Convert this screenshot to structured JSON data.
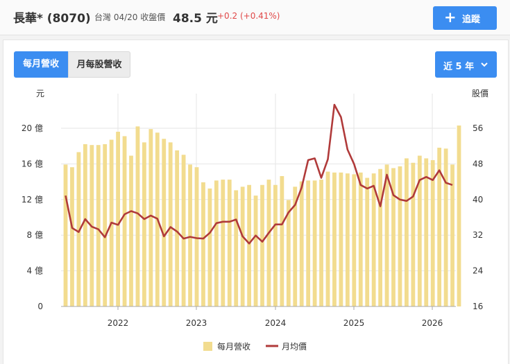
{
  "header": {
    "stock_name": "長華* (8070)",
    "quote_meta": "台灣 04/20 收盤價",
    "price": "48.5 元",
    "change": "+0.2 (+0.41%)",
    "track_label": "追蹤",
    "track_icon": "plus-icon"
  },
  "controls": {
    "tab_monthly": "每月營收",
    "tab_eps": "月每股營收",
    "range_label": "近 5 年",
    "range_icon": "chevron-down-icon"
  },
  "colors": {
    "accent": "#3b8df1",
    "bar": "#f2dc8f",
    "line": "#b03a3a",
    "change": "#e04848"
  },
  "chart_data": {
    "type": "bar",
    "y_left_title": "元",
    "y_right_title": "股價",
    "y_left_ticks": [
      "0",
      "4 億",
      "8 億",
      "12 億",
      "16 億",
      "20 億"
    ],
    "y_right_ticks": [
      "16",
      "24",
      "32",
      "40",
      "48",
      "56"
    ],
    "y_left_range": [
      0,
      24
    ],
    "y_right_range": [
      16,
      64
    ],
    "x_ticks": [
      "2022",
      "2023",
      "2024",
      "2025",
      "2026"
    ],
    "grid": true,
    "legend_position": "bottom",
    "series": [
      {
        "name": "每月營收",
        "type": "bar",
        "axis": "left",
        "values": [
          16.0,
          15.7,
          17.4,
          18.3,
          18.2,
          18.2,
          18.3,
          18.8,
          19.7,
          19.2,
          17.0,
          20.3,
          18.5,
          20.0,
          19.6,
          18.9,
          18.5,
          17.6,
          17.1,
          16.0,
          15.7,
          14.0,
          13.3,
          14.2,
          14.3,
          14.3,
          13.1,
          13.5,
          13.7,
          12.5,
          13.7,
          14.3,
          13.7,
          14.7,
          12.0,
          13.5,
          14.1,
          14.2,
          14.2,
          14.3,
          15.2,
          15.1,
          15.1,
          15.0,
          14.9,
          15.1,
          14.5,
          15.0,
          15.5,
          16.0,
          15.6,
          15.8,
          16.7,
          16.2,
          17.0,
          16.7,
          16.5,
          17.9,
          17.8,
          16.0,
          20.4
        ],
        "unit": "億"
      },
      {
        "name": "月均價",
        "type": "line",
        "axis": "right",
        "values": [
          41.0,
          33.7,
          32.8,
          35.7,
          34.0,
          33.4,
          31.6,
          34.9,
          34.4,
          36.8,
          37.5,
          37.0,
          35.7,
          36.5,
          35.8,
          31.8,
          33.9,
          32.9,
          31.3,
          31.7,
          31.4,
          31.3,
          32.6,
          34.8,
          35.1,
          35.1,
          35.6,
          31.8,
          30.2,
          32.0,
          30.6,
          32.6,
          34.5,
          34.5,
          37.2,
          38.9,
          42.8,
          49.0,
          49.4,
          45.0,
          49.2,
          61.5,
          58.7,
          51.4,
          48.1,
          43.4,
          42.6,
          43.2,
          38.6,
          45.7,
          41.1,
          40.1,
          39.8,
          40.8,
          44.5,
          45.2,
          44.5,
          46.7,
          43.9,
          43.4
        ],
        "unit": "元"
      }
    ]
  }
}
